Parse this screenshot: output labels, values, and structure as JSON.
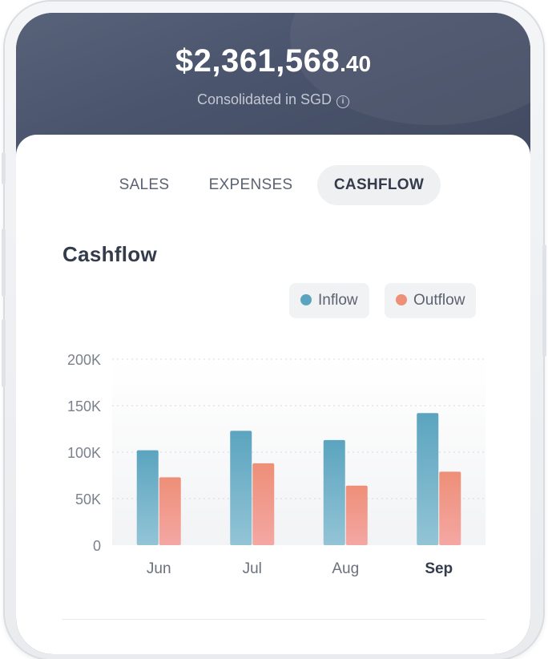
{
  "balance": {
    "main": "$2,361,568",
    "cents": ".40"
  },
  "subtitle": "Consolidated in SGD",
  "tabs": [
    {
      "label": "SALES",
      "active": false
    },
    {
      "label": "EXPENSES",
      "active": false
    },
    {
      "label": "CASHFLOW",
      "active": true
    }
  ],
  "section_title": "Cashflow",
  "colors": {
    "inflow": "#5ba4bf",
    "outflow": "#ee8f78",
    "header": "#4a546c"
  },
  "icons": [
    "info-icon"
  ],
  "chart_data": {
    "type": "bar",
    "categories": [
      "Jun",
      "Jul",
      "Aug",
      "Sep"
    ],
    "highlighted_category": "Sep",
    "series": [
      {
        "name": "Inflow",
        "values": [
          102000,
          123000,
          113000,
          142000
        ]
      },
      {
        "name": "Outflow",
        "values": [
          73000,
          88000,
          64000,
          79000
        ]
      }
    ],
    "yticks": [
      "0",
      "50K",
      "100K",
      "150K",
      "200K"
    ],
    "ylim": [
      0,
      200000
    ],
    "grid": true,
    "legend_position": "top-right",
    "xlabel": "",
    "ylabel": ""
  }
}
